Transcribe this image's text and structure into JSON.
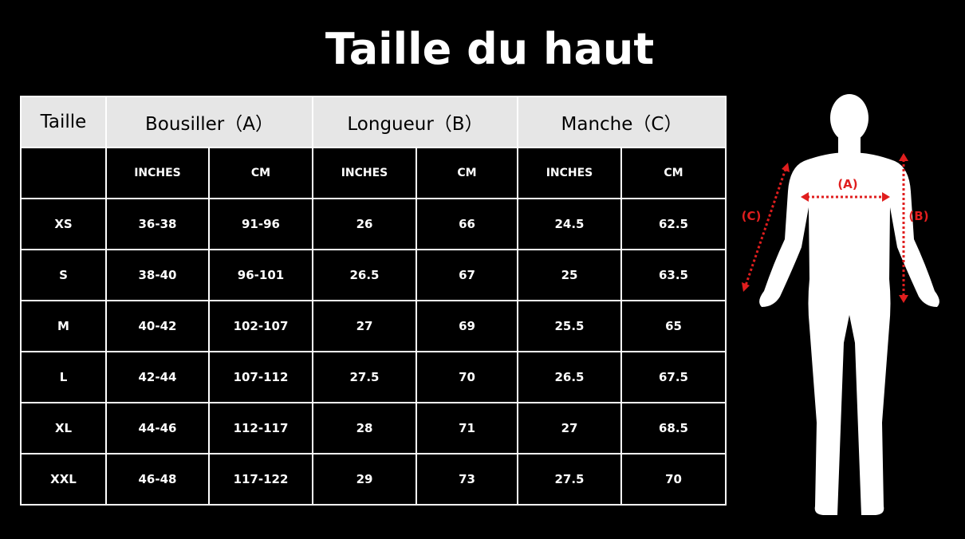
{
  "title": "Taille du haut",
  "headers": {
    "size": "Taille",
    "a": "Bousiller（A）",
    "b": "Longueur（B）",
    "c": "Manche（C）"
  },
  "units": [
    "INCHES",
    "CM",
    "INCHES",
    "CM",
    "INCHES",
    "CM"
  ],
  "rows": [
    [
      "XS",
      "36-38",
      "91-96",
      "26",
      "66",
      "24.5",
      "62.5"
    ],
    [
      "S",
      "38-40",
      "96-101",
      "26.5",
      "67",
      "25",
      "63.5"
    ],
    [
      "M",
      "40-42",
      "102-107",
      "27",
      "69",
      "25.5",
      "65"
    ],
    [
      "L",
      "42-44",
      "107-112",
      "27.5",
      "70",
      "26.5",
      "67.5"
    ],
    [
      "XL",
      "44-46",
      "112-117",
      "28",
      "71",
      "27",
      "68.5"
    ],
    [
      "XXL",
      "46-48",
      "117-122",
      "29",
      "73",
      "27.5",
      "70"
    ]
  ],
  "figure": {
    "labels": {
      "a": "(A)",
      "b": "(B)",
      "c": "(C)"
    },
    "accent": "#e01e1e"
  }
}
